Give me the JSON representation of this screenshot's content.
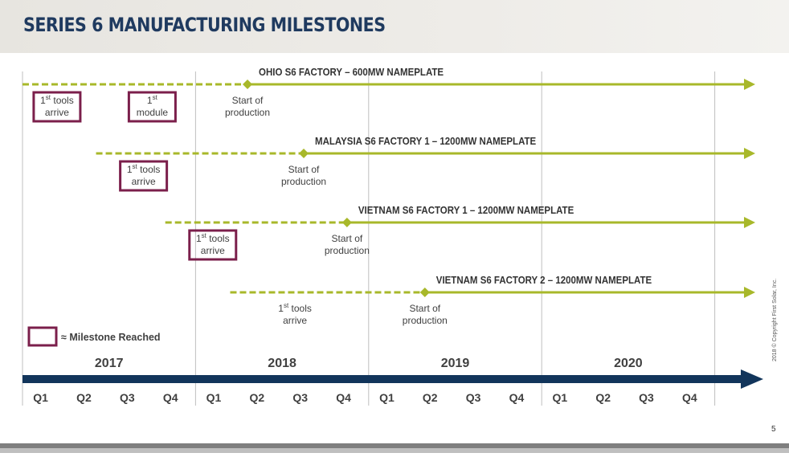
{
  "title": "SERIES 6 MANUFACTURING MILESTONES",
  "colors": {
    "title": "#1f3a5f",
    "line": "#a8b82a",
    "milestone_box": "#7b1f4b",
    "timeline": "#12355b",
    "grid": "#bfbfbf",
    "text": "#404040"
  },
  "years": [
    "2017",
    "2018",
    "2019",
    "2020"
  ],
  "quarters": [
    "Q1",
    "Q2",
    "Q3",
    "Q4",
    "Q1",
    "Q2",
    "Q3",
    "Q4",
    "Q1",
    "Q2",
    "Q3",
    "Q4",
    "Q1",
    "Q2",
    "Q3",
    "Q4"
  ],
  "factories": [
    {
      "name": "OHIO S6 FACTORY – 600MW NAMEPLATE",
      "dashed_start_q": 0.0,
      "production_q": 5.2,
      "production_label": [
        "Start of",
        "production"
      ],
      "milestones": [
        {
          "sup": "st",
          "text": [
            "tools",
            "arrive"
          ],
          "q": 0.5,
          "reached": true
        },
        {
          "sup": "st",
          "text": [
            "",
            "module"
          ],
          "q": 2.7,
          "reached": true
        }
      ]
    },
    {
      "name": "MALAYSIA S6 FACTORY 1 – 1200MW NAMEPLATE",
      "dashed_start_q": 1.7,
      "production_q": 6.5,
      "production_label": [
        "Start of",
        "production"
      ],
      "milestones": [
        {
          "sup": "st",
          "text": [
            "tools",
            "arrive"
          ],
          "q": 2.5,
          "reached": true
        }
      ]
    },
    {
      "name": "VIETNAM S6 FACTORY 1 – 1200MW NAMEPLATE",
      "dashed_start_q": 3.3,
      "production_q": 7.5,
      "production_label": [
        "Start of",
        "production"
      ],
      "milestones": [
        {
          "sup": "st",
          "text": [
            "tools",
            "arrive"
          ],
          "q": 4.1,
          "reached": true
        }
      ]
    },
    {
      "name": "VIETNAM S6 FACTORY 2 – 1200MW NAMEPLATE",
      "dashed_start_q": 4.8,
      "production_q": 9.3,
      "production_label": [
        "Start of",
        "production"
      ],
      "milestones": [
        {
          "sup": "st",
          "text": [
            "tools",
            "arrive"
          ],
          "q": 6.0,
          "reached": false
        }
      ]
    }
  ],
  "legend": {
    "label": "≈ Milestone Reached"
  },
  "footer": {
    "copyright": "2018 © Copyright First Solar, Inc.",
    "page": "5"
  }
}
